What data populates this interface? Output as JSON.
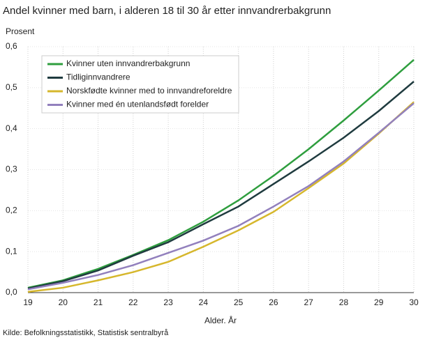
{
  "chart_data": {
    "type": "line",
    "title": "Andel kvinner med barn, i alderen 18 til 30 år etter innvandrerbakgrunn",
    "y_label": "Prosent",
    "x_label": "Alder. År",
    "source": "Kilde: Befolkningsstatistikk, Statistisk sentralbyrå",
    "x": [
      19,
      20,
      21,
      22,
      23,
      24,
      25,
      26,
      27,
      28,
      29,
      30
    ],
    "series": [
      {
        "name": "Kvinner uten innvandrerbakgrunn",
        "color": "#2e9e3e",
        "values": [
          0.012,
          0.03,
          0.058,
          0.092,
          0.128,
          0.173,
          0.225,
          0.285,
          0.35,
          0.42,
          0.493,
          0.568
        ]
      },
      {
        "name": "Tidliginnvandrere",
        "color": "#1f3b3f",
        "values": [
          0.01,
          0.028,
          0.054,
          0.09,
          0.123,
          0.167,
          0.21,
          0.265,
          0.32,
          0.378,
          0.443,
          0.515
        ]
      },
      {
        "name": "Norskfødte kvinner med to innvandreforeldre",
        "color": "#d6b72c",
        "values": [
          0.002,
          0.012,
          0.03,
          0.05,
          0.075,
          0.112,
          0.152,
          0.197,
          0.255,
          0.315,
          0.388,
          0.465
        ]
      },
      {
        "name": "Kvinner med én utenlandsfødt forelder",
        "color": "#9280bd",
        "values": [
          0.008,
          0.024,
          0.043,
          0.067,
          0.097,
          0.127,
          0.163,
          0.21,
          0.26,
          0.32,
          0.39,
          0.462
        ]
      }
    ],
    "xlim": [
      19,
      30
    ],
    "xticks": [
      19,
      20,
      21,
      22,
      23,
      24,
      25,
      26,
      27,
      28,
      29,
      30
    ],
    "ylim": [
      0,
      0.6
    ],
    "yticks": [
      {
        "value": 0,
        "label": "0,0"
      },
      {
        "value": 0.1,
        "label": "0,1"
      },
      {
        "value": 0.2,
        "label": "0,2"
      },
      {
        "value": 0.3,
        "label": "0,3"
      },
      {
        "value": 0.4,
        "label": "0,4"
      },
      {
        "value": 0.5,
        "label": "0,5"
      },
      {
        "value": 0.6,
        "label": "0,6"
      }
    ],
    "grid": true,
    "legend": "upper-left"
  }
}
